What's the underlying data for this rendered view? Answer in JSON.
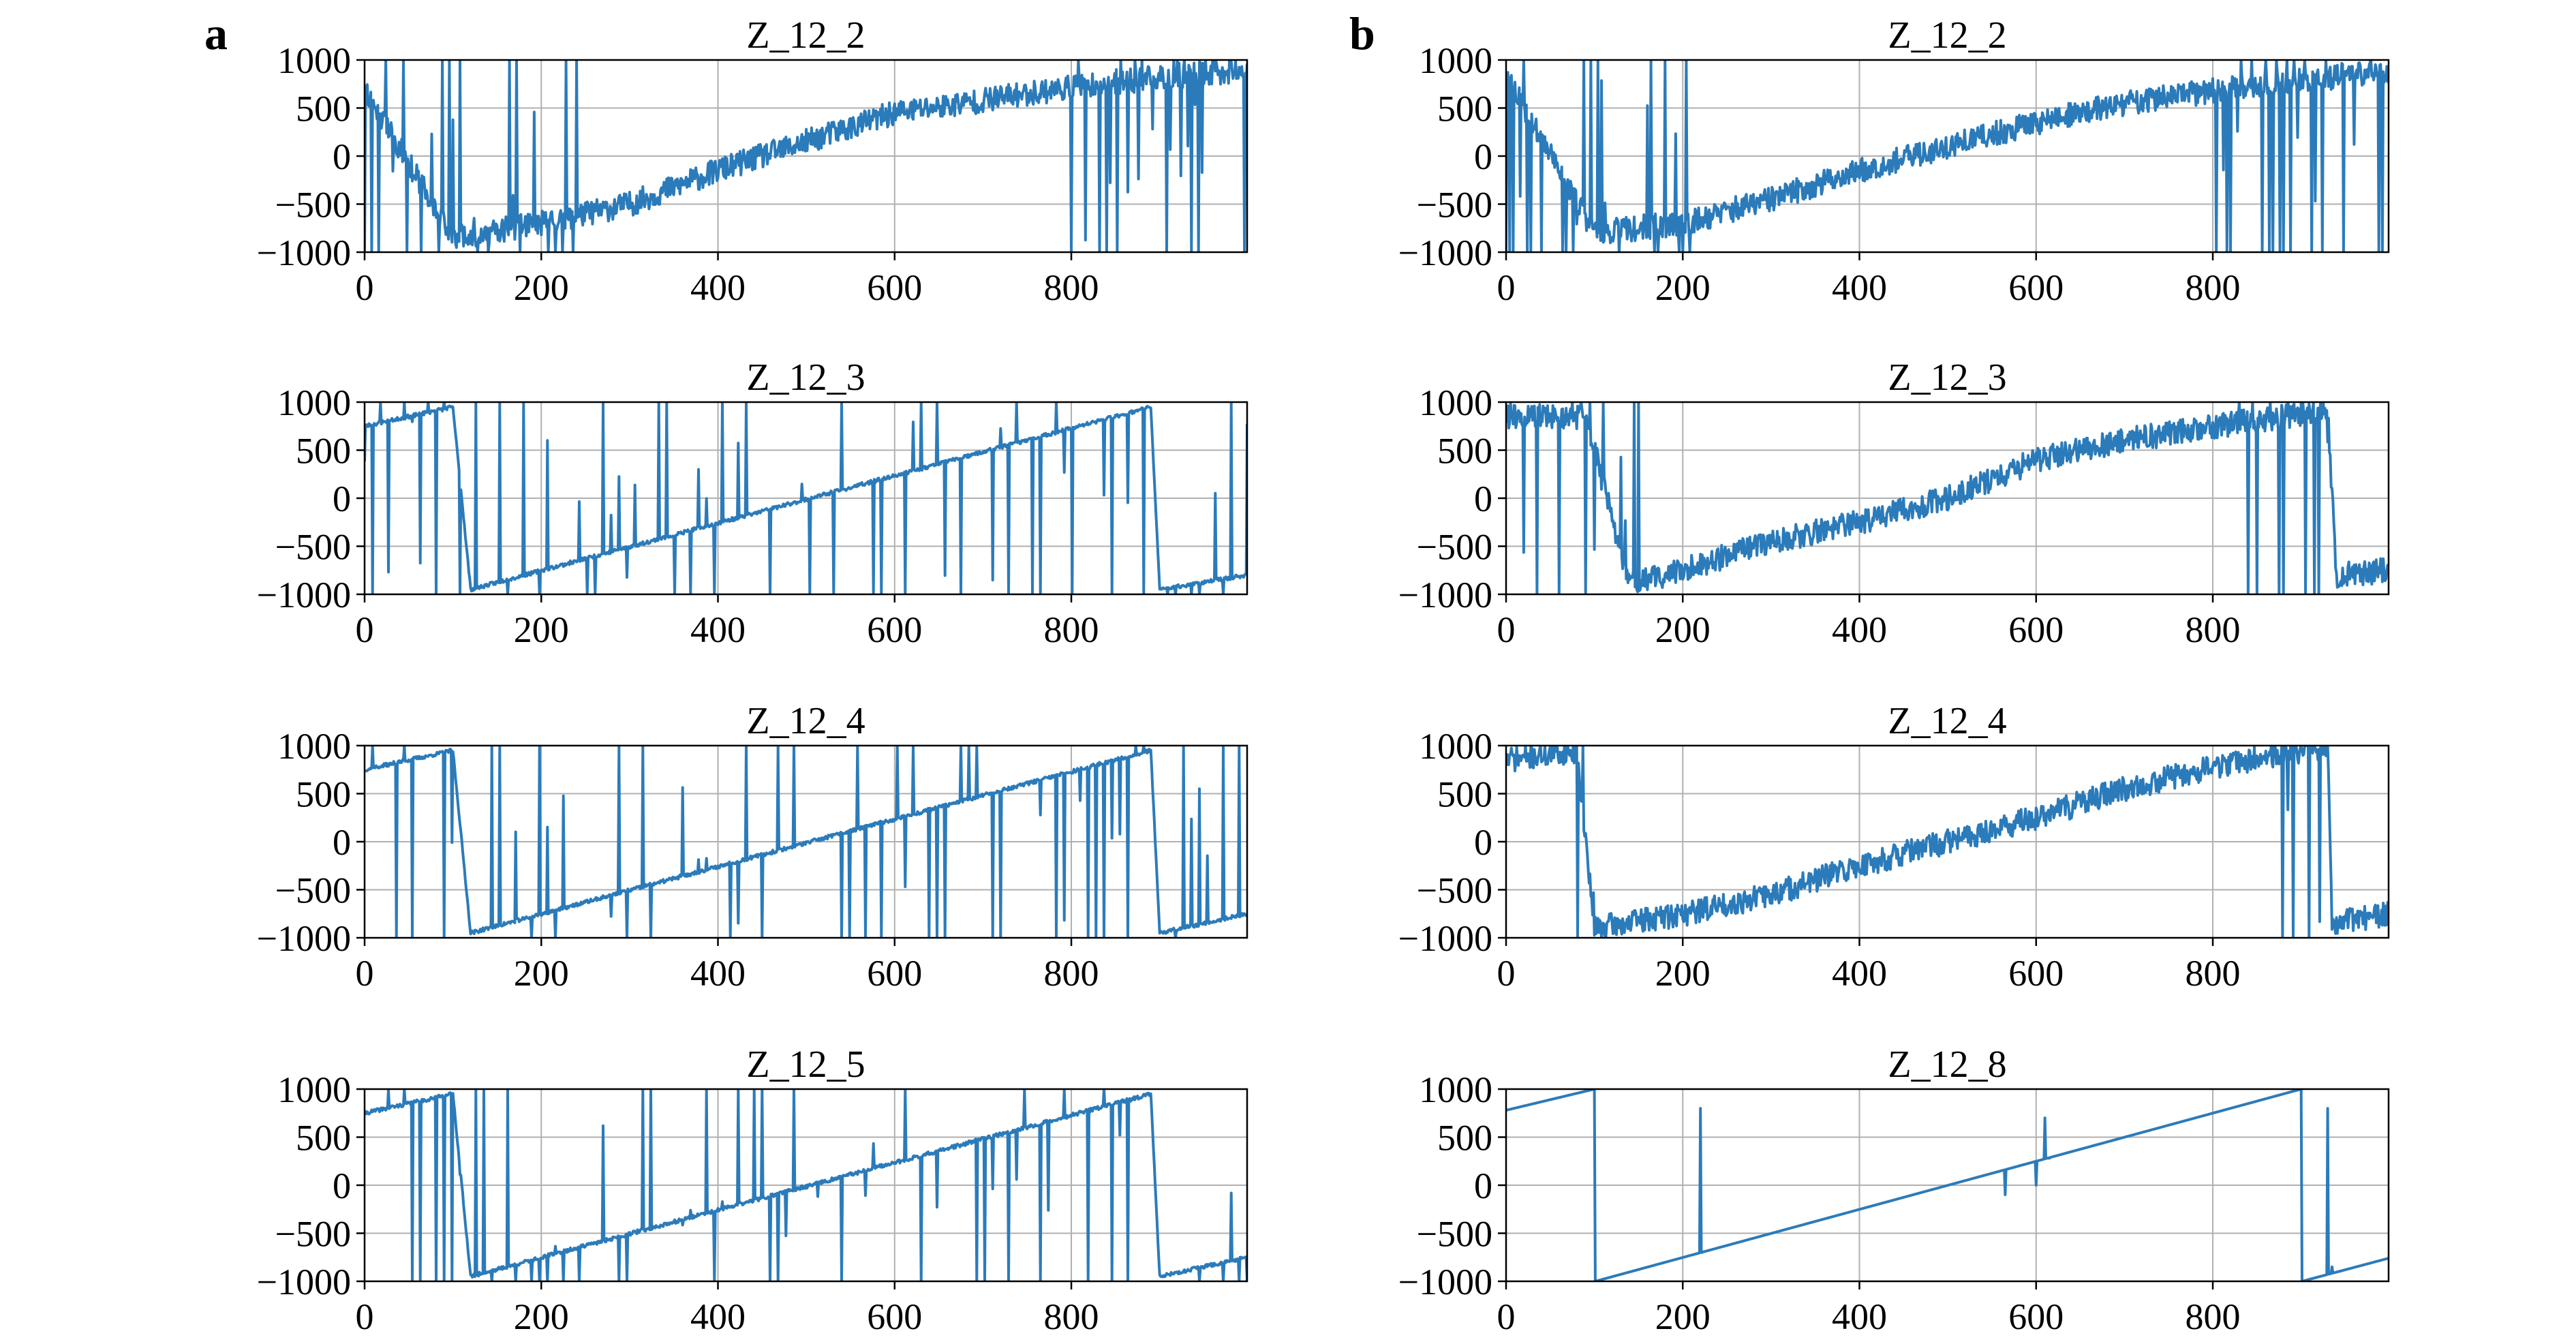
{
  "panels": [
    {
      "label": "a"
    },
    {
      "label": "b"
    }
  ],
  "style": {
    "line_color": "#2b7bba",
    "grid_color": "#b0b0b0"
  },
  "chart_data": [
    {
      "panel": "a",
      "type": "line",
      "title": "Z_12_2",
      "xlim": [
        0,
        999
      ],
      "ylim": [
        -1000,
        1000
      ],
      "xticks": [
        0,
        200,
        400,
        600,
        800
      ],
      "yticks": [
        1000,
        500,
        0,
        -500,
        -1000
      ],
      "grid": true,
      "pattern": "noisy_ramp",
      "ramp": [
        [
          0,
          700
        ],
        [
          100,
          -850
        ],
        [
          200,
          -700
        ],
        [
          300,
          -500
        ],
        [
          400,
          -150
        ],
        [
          500,
          150
        ],
        [
          600,
          450
        ],
        [
          700,
          580
        ],
        [
          800,
          720
        ],
        [
          900,
          820
        ],
        [
          999,
          900
        ]
      ],
      "glitch": {
        "ranges": [
          [
            0,
            240
          ],
          [
            790,
            999
          ]
        ],
        "every": 4,
        "seed": 11
      }
    },
    {
      "panel": "a",
      "type": "line",
      "title": "Z_12_3",
      "xlim": [
        0,
        999
      ],
      "ylim": [
        -1000,
        1000
      ],
      "xticks": [
        0,
        200,
        400,
        600,
        800
      ],
      "yticks": [
        1000,
        500,
        0,
        -500,
        -1000
      ],
      "grid": true,
      "pattern": "sparse_ramp",
      "ramp": [
        [
          0,
          750
        ],
        [
          100,
          950
        ],
        [
          120,
          -950
        ],
        [
          890,
          950
        ],
        [
          900,
          -950
        ],
        [
          999,
          -800
        ]
      ],
      "glitch": {
        "ranges": [
          [
            0,
            999
          ]
        ],
        "every": 9,
        "seed": 23
      }
    },
    {
      "panel": "a",
      "type": "line",
      "title": "Z_12_4",
      "xlim": [
        0,
        999
      ],
      "ylim": [
        -1000,
        1000
      ],
      "xticks": [
        0,
        200,
        400,
        600,
        800
      ],
      "yticks": [
        1000,
        500,
        0,
        -500,
        -1000
      ],
      "grid": true,
      "pattern": "sparse_ramp",
      "ramp": [
        [
          0,
          750
        ],
        [
          100,
          950
        ],
        [
          120,
          -950
        ],
        [
          890,
          950
        ],
        [
          900,
          -950
        ],
        [
          999,
          -750
        ]
      ],
      "glitch": {
        "ranges": [
          [
            0,
            999
          ]
        ],
        "every": 9,
        "seed": 37
      }
    },
    {
      "panel": "a",
      "type": "line",
      "title": "Z_12_5",
      "xlim": [
        0,
        999
      ],
      "ylim": [
        -1000,
        1000
      ],
      "xticks": [
        0,
        200,
        400,
        600,
        800
      ],
      "yticks": [
        1000,
        500,
        0,
        -500,
        -1000
      ],
      "grid": true,
      "pattern": "sparse_ramp",
      "ramp": [
        [
          0,
          750
        ],
        [
          100,
          950
        ],
        [
          120,
          -950
        ],
        [
          890,
          950
        ],
        [
          900,
          -950
        ],
        [
          999,
          -750
        ]
      ],
      "glitch": {
        "ranges": [
          [
            0,
            999
          ]
        ],
        "every": 9,
        "seed": 41
      }
    },
    {
      "panel": "b",
      "type": "line",
      "title": "Z_12_2",
      "xlim": [
        0,
        999
      ],
      "ylim": [
        -1000,
        1000
      ],
      "xticks": [
        0,
        200,
        400,
        600,
        800
      ],
      "yticks": [
        1000,
        500,
        0,
        -500,
        -1000
      ],
      "grid": true,
      "pattern": "noisy_ramp",
      "ramp": [
        [
          0,
          850
        ],
        [
          100,
          -800
        ],
        [
          200,
          -700
        ],
        [
          300,
          -450
        ],
        [
          400,
          -150
        ],
        [
          500,
          100
        ],
        [
          600,
          350
        ],
        [
          700,
          550
        ],
        [
          800,
          680
        ],
        [
          900,
          780
        ],
        [
          999,
          900
        ]
      ],
      "glitch": {
        "ranges": [
          [
            0,
            220
          ],
          [
            800,
            999
          ]
        ],
        "every": 4,
        "seed": 53
      }
    },
    {
      "panel": "b",
      "type": "line",
      "title": "Z_12_3",
      "xlim": [
        0,
        999
      ],
      "ylim": [
        -1000,
        1000
      ],
      "xticks": [
        0,
        200,
        400,
        600,
        800
      ],
      "yticks": [
        1000,
        500,
        0,
        -500,
        -1000
      ],
      "grid": true,
      "pattern": "noisy_ramp",
      "ramp": [
        [
          0,
          850
        ],
        [
          90,
          850
        ],
        [
          140,
          -900
        ],
        [
          200,
          -750
        ],
        [
          300,
          -450
        ],
        [
          400,
          -250
        ],
        [
          500,
          0
        ],
        [
          600,
          400
        ],
        [
          700,
          600
        ],
        [
          800,
          750
        ],
        [
          900,
          880
        ],
        [
          930,
          900
        ],
        [
          940,
          -800
        ],
        [
          999,
          -750
        ]
      ],
      "glitch": {
        "ranges": [
          [
            0,
            150
          ],
          [
            830,
            930
          ]
        ],
        "every": 5,
        "seed": 61
      }
    },
    {
      "panel": "b",
      "type": "line",
      "title": "Z_12_4",
      "xlim": [
        0,
        999
      ],
      "ylim": [
        -1000,
        1000
      ],
      "xticks": [
        0,
        200,
        400,
        600,
        800
      ],
      "yticks": [
        1000,
        500,
        0,
        -500,
        -1000
      ],
      "grid": true,
      "pattern": "noisy_ramp",
      "ramp": [
        [
          0,
          850
        ],
        [
          80,
          950
        ],
        [
          100,
          -900
        ],
        [
          200,
          -750
        ],
        [
          300,
          -550
        ],
        [
          400,
          -250
        ],
        [
          500,
          0
        ],
        [
          600,
          250
        ],
        [
          700,
          550
        ],
        [
          800,
          780
        ],
        [
          900,
          950
        ],
        [
          930,
          950
        ],
        [
          935,
          -850
        ],
        [
          999,
          -750
        ]
      ],
      "glitch": {
        "ranges": [
          [
            80,
            100
          ],
          [
            870,
            930
          ]
        ],
        "every": 3,
        "seed": 71
      }
    },
    {
      "panel": "b",
      "type": "line",
      "title": "Z_12_8",
      "xlim": [
        0,
        999
      ],
      "ylim": [
        -1000,
        1000
      ],
      "xticks": [
        0,
        200,
        400,
        600,
        800
      ],
      "yticks": [
        1000,
        500,
        0,
        -500,
        -1000
      ],
      "grid": true,
      "pattern": "clean_sawtooth",
      "ramp": [
        [
          0,
          780
        ],
        [
          100,
          1000
        ],
        [
          101,
          -1000
        ],
        [
          900,
          1000
        ],
        [
          901,
          -1000
        ],
        [
          999,
          -760
        ]
      ],
      "spikes": [
        [
          220,
          800
        ],
        [
          222,
          -700
        ],
        [
          565,
          -100
        ],
        [
          600,
          0
        ],
        [
          610,
          700
        ],
        [
          615,
          280
        ],
        [
          930,
          800
        ],
        [
          935,
          -850
        ]
      ]
    }
  ]
}
